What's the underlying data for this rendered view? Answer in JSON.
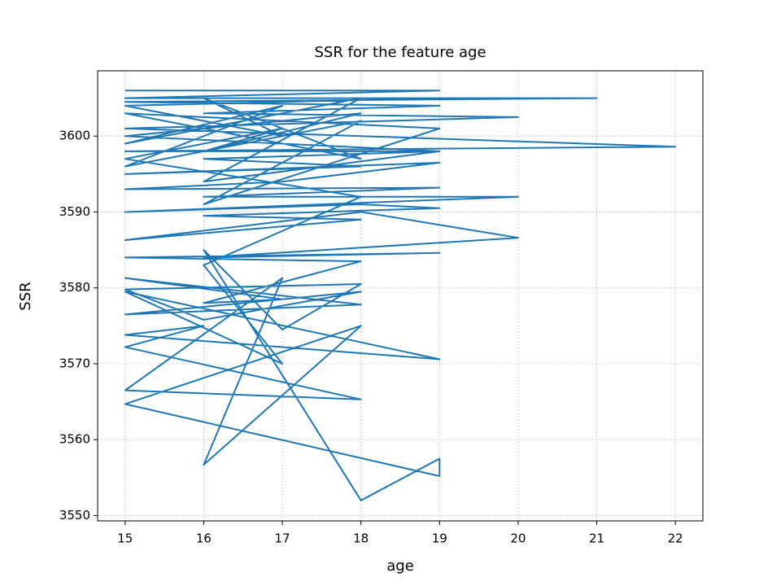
{
  "chart_data": {
    "type": "line",
    "title": "SSR for the feature age",
    "x_label": "age",
    "y_label": "SSR",
    "color": "#1f77b4",
    "grid": true,
    "xlim": [
      14.65,
      22.35
    ],
    "xticks": [
      15,
      16,
      17,
      18,
      19,
      20,
      21,
      22
    ],
    "ylim": [
      3549.3,
      3608.6
    ],
    "yticks": [
      3550,
      3560,
      3570,
      3580,
      3590,
      3600
    ],
    "x": [
      15,
      19,
      15,
      21,
      15,
      19,
      16,
      20,
      15,
      18,
      22,
      15,
      19,
      16,
      18,
      15,
      19,
      17,
      15,
      19,
      16,
      20,
      15,
      18,
      19,
      16,
      18,
      15,
      18,
      20,
      16,
      19,
      15,
      18,
      16,
      17,
      15,
      18,
      15,
      18,
      16,
      15,
      18,
      17,
      16,
      18,
      19,
      19,
      15,
      18,
      16,
      17,
      15,
      18,
      15,
      16,
      15,
      19,
      15,
      17,
      16,
      18,
      15,
      17,
      16,
      18,
      15,
      19,
      16,
      18,
      15,
      17,
      15,
      18,
      16,
      19,
      15,
      18,
      16,
      17,
      15,
      19
    ],
    "values": [
      3606,
      3606,
      3605,
      3605,
      3604.5,
      3604,
      3603,
      3602.5,
      3601,
      3600,
      3598.6,
      3598,
      3598,
      3597,
      3596,
      3595,
      3596.5,
      3594,
      3593,
      3593.2,
      3592,
      3592,
      3590,
      3591,
      3590.5,
      3589.5,
      3589,
      3586.3,
      3590,
      3586.6,
      3584,
      3584.6,
      3584,
      3583.5,
      3578,
      3578.5,
      3581.3,
      3577.8,
      3576.5,
      3579.5,
      3575.8,
      3579.8,
      3580.5,
      3574.5,
      3585,
      3552,
      3557.5,
      3555.2,
      3564.7,
      3575,
      3556.7,
      3581.3,
      3566.5,
      3565.3,
      3572.2,
      3575,
      3573.8,
      3570.6,
      3579.5,
      3570,
      3583,
      3592,
      3597,
      3601,
      3598,
      3603,
      3600,
      3598,
      3594,
      3605,
      3599,
      3604,
      3596,
      3602,
      3591,
      3601,
      3603,
      3597,
      3605,
      3600,
      3604,
      3605
    ]
  }
}
